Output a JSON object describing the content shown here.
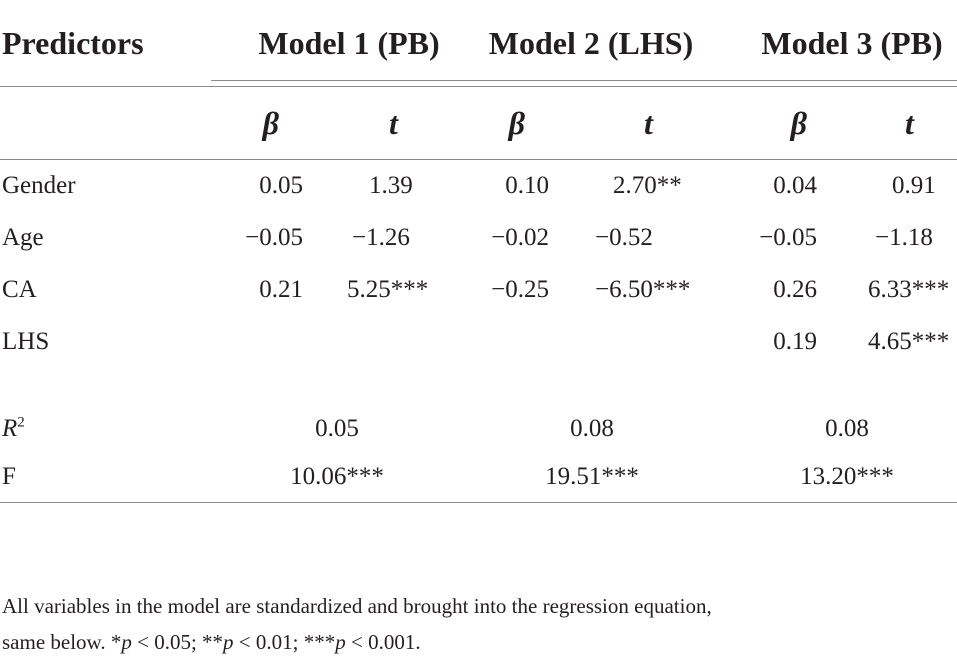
{
  "table": {
    "predictors_header": "Predictors",
    "models": [
      {
        "label": "Model 1 (PB)"
      },
      {
        "label": "Model 2 (LHS)"
      },
      {
        "label": "Model 3 (PB)"
      }
    ],
    "beta_label": "β",
    "t_label": "t",
    "rows": [
      {
        "label": "Gender",
        "cells": [
          "0.05",
          "1.39",
          "0.10",
          "2.70**",
          "0.04",
          "0.91"
        ]
      },
      {
        "label": "Age",
        "cells": [
          "−0.05",
          "−1.26",
          "−0.02",
          "−0.52",
          "−0.05",
          "−1.18"
        ]
      },
      {
        "label": "CA",
        "cells": [
          "0.21",
          "5.25***",
          "−0.25",
          "−6.50***",
          "0.26",
          "6.33***"
        ]
      },
      {
        "label": "LHS",
        "cells": [
          "",
          "",
          "",
          "",
          "0.19",
          "4.65***"
        ]
      }
    ],
    "fit_rows": [
      {
        "label_main": "R",
        "label_sup": "2",
        "values": [
          "0.05",
          "0.08",
          "0.08"
        ]
      },
      {
        "label_main": "F",
        "label_sup": "",
        "values": [
          "10.06***",
          "19.51***",
          "13.20***"
        ]
      }
    ]
  },
  "note": {
    "line1": "All variables in the model are standardized and brought into the regression equation,",
    "line2_prefix": "same below. *",
    "p1": "p",
    "t1": " < 0.05; **",
    "p2": "p",
    "t2": " < 0.01; ***",
    "p3": "p",
    "t3": " < 0.001."
  }
}
